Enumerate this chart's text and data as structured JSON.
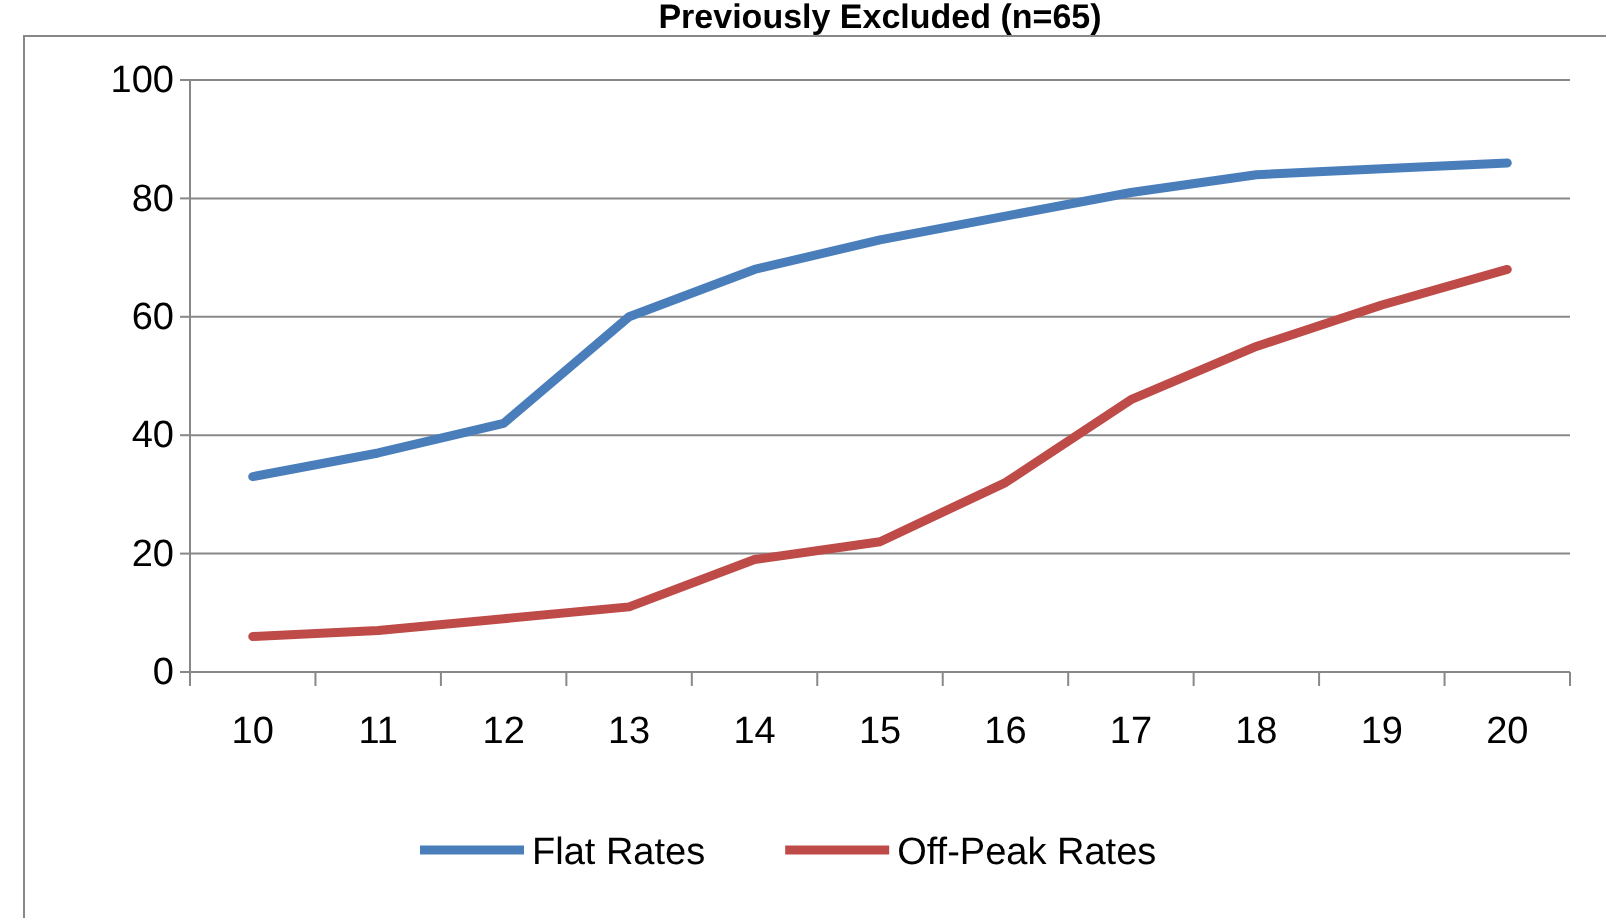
{
  "chart_data": {
    "type": "line",
    "title": "Previously Excluded (n=65)",
    "categories": [
      "10",
      "11",
      "12",
      "13",
      "14",
      "15",
      "16",
      "17",
      "18",
      "19",
      "20"
    ],
    "series": [
      {
        "name": "Flat Rates",
        "color": "#4a7ebb",
        "values": [
          33,
          37,
          42,
          60,
          68,
          73,
          77,
          81,
          84,
          85,
          86
        ]
      },
      {
        "name": "Off-Peak Rates",
        "color": "#be4b48",
        "values": [
          6,
          7,
          9,
          11,
          19,
          22,
          32,
          46,
          55,
          62,
          68
        ]
      }
    ],
    "ylim": [
      0,
      100
    ],
    "yticks": [
      0,
      20,
      40,
      60,
      80,
      100
    ],
    "grid": "y",
    "legend": "bottom",
    "marker": "none",
    "line_style": "solid"
  }
}
